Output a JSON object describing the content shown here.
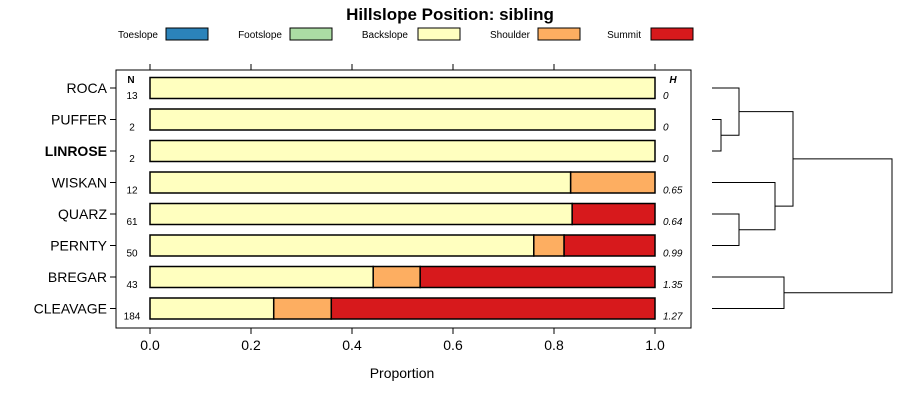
{
  "chart_data": {
    "type": "bar",
    "stacked": true,
    "orientation": "horizontal",
    "title": "Hillslope Position: sibling",
    "xlabel": "Proportion",
    "xlim": [
      0,
      1
    ],
    "xticks": [
      "0.0",
      "0.2",
      "0.4",
      "0.6",
      "0.8",
      "1.0"
    ],
    "legend_position": "top",
    "n_header": "N",
    "h_header": "H",
    "series": [
      {
        "name": "Toeslope",
        "color": "#2B83BA"
      },
      {
        "name": "Footslope",
        "color": "#ABDDA4"
      },
      {
        "name": "Backslope",
        "color": "#FFFFBF"
      },
      {
        "name": "Shoulder",
        "color": "#FDAE61"
      },
      {
        "name": "Summit",
        "color": "#D7191C"
      }
    ],
    "rows": [
      {
        "label": "ROCA",
        "bold": false,
        "n": "13",
        "h": "0",
        "values": [
          0,
          0,
          1.0,
          0,
          0
        ]
      },
      {
        "label": "PUFFER",
        "bold": false,
        "n": "2",
        "h": "0",
        "values": [
          0,
          0,
          1.0,
          0,
          0
        ]
      },
      {
        "label": "LINROSE",
        "bold": true,
        "n": "2",
        "h": "0",
        "values": [
          0,
          0,
          1.0,
          0,
          0
        ]
      },
      {
        "label": "WISKAN",
        "bold": false,
        "n": "12",
        "h": "0.65",
        "values": [
          0,
          0,
          0.833,
          0.167,
          0
        ]
      },
      {
        "label": "QUARZ",
        "bold": false,
        "n": "61",
        "h": "0.64",
        "values": [
          0,
          0,
          0.836,
          0,
          0.164
        ]
      },
      {
        "label": "PERNTY",
        "bold": false,
        "n": "50",
        "h": "0.99",
        "values": [
          0,
          0,
          0.76,
          0.06,
          0.18
        ]
      },
      {
        "label": "BREGAR",
        "bold": false,
        "n": "43",
        "h": "1.35",
        "values": [
          0,
          0,
          0.442,
          0.093,
          0.465
        ]
      },
      {
        "label": "CLEAVAGE",
        "bold": false,
        "n": "184",
        "h": "1.27",
        "values": [
          0,
          0,
          0.245,
          0.114,
          0.641
        ]
      }
    ],
    "dendrogram": {
      "merges": [
        {
          "a": "PUFFER",
          "b": "LINROSE",
          "height": 0.05
        },
        {
          "a": "ROCA",
          "b": "m0",
          "height": 0.15
        },
        {
          "a": "QUARZ",
          "b": "PERNTY",
          "height": 0.15
        },
        {
          "a": "WISKAN",
          "b": "m2",
          "height": 0.35
        },
        {
          "a": "m1",
          "b": "m3",
          "height": 0.45
        },
        {
          "a": "BREGAR",
          "b": "CLEAVAGE",
          "height": 0.4
        },
        {
          "a": "m4",
          "b": "m5",
          "height": 1.0
        }
      ]
    }
  }
}
